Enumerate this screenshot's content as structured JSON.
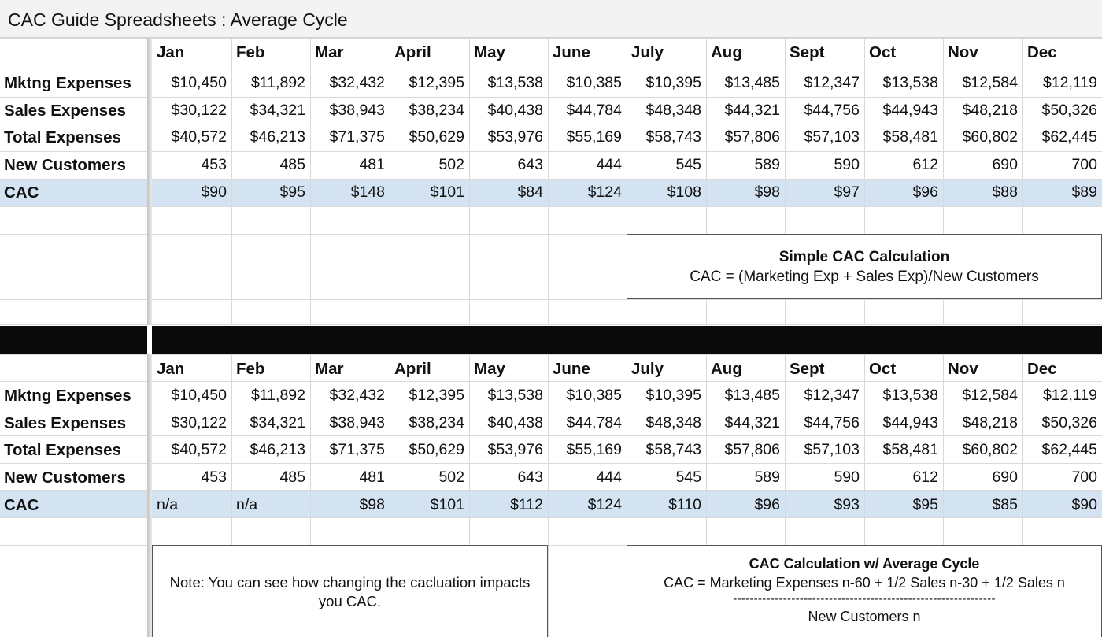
{
  "window": {
    "title": "CAC Guide Spreadsheets : Average Cycle"
  },
  "months": [
    "Jan",
    "Feb",
    "Mar",
    "April",
    "May",
    "June",
    "July",
    "Aug",
    "Sept",
    "Oct",
    "Nov",
    "Dec"
  ],
  "colors": {
    "cac_row": "#d3e3f1",
    "divider": "#0a0a0a",
    "gridline": "#d9d9d9"
  },
  "simple_table": {
    "rows": [
      {
        "label": "Mktng Expenses",
        "values": [
          "$10,450",
          "$11,892",
          "$32,432",
          "$12,395",
          "$13,538",
          "$10,385",
          "$10,395",
          "$13,485",
          "$12,347",
          "$13,538",
          "$12,584",
          "$12,119"
        ]
      },
      {
        "label": "Sales Expenses",
        "values": [
          "$30,122",
          "$34,321",
          "$38,943",
          "$38,234",
          "$40,438",
          "$44,784",
          "$48,348",
          "$44,321",
          "$44,756",
          "$44,943",
          "$48,218",
          "$50,326"
        ]
      },
      {
        "label": "Total Expenses",
        "values": [
          "$40,572",
          "$46,213",
          "$71,375",
          "$50,629",
          "$53,976",
          "$55,169",
          "$58,743",
          "$57,806",
          "$57,103",
          "$58,481",
          "$60,802",
          "$62,445"
        ]
      },
      {
        "label": "New Customers",
        "values": [
          "453",
          "485",
          "481",
          "502",
          "643",
          "444",
          "545",
          "589",
          "590",
          "612",
          "690",
          "700"
        ]
      },
      {
        "label": "CAC",
        "highlight": true,
        "values": [
          "$90",
          "$95",
          "$148",
          "$101",
          "$84",
          "$124",
          "$108",
          "$98",
          "$97",
          "$96",
          "$88",
          "$89"
        ]
      }
    ],
    "formula_box": {
      "heading": "Simple CAC Calculation",
      "formula": "CAC = (Marketing Exp + Sales Exp)/New Customers"
    }
  },
  "average_cycle_table": {
    "rows": [
      {
        "label": "Mktng Expenses",
        "values": [
          "$10,450",
          "$11,892",
          "$32,432",
          "$12,395",
          "$13,538",
          "$10,385",
          "$10,395",
          "$13,485",
          "$12,347",
          "$13,538",
          "$12,584",
          "$12,119"
        ]
      },
      {
        "label": "Sales Expenses",
        "values": [
          "$30,122",
          "$34,321",
          "$38,943",
          "$38,234",
          "$40,438",
          "$44,784",
          "$48,348",
          "$44,321",
          "$44,756",
          "$44,943",
          "$48,218",
          "$50,326"
        ]
      },
      {
        "label": "Total Expenses",
        "values": [
          "$40,572",
          "$46,213",
          "$71,375",
          "$50,629",
          "$53,976",
          "$55,169",
          "$58,743",
          "$57,806",
          "$57,103",
          "$58,481",
          "$60,802",
          "$62,445"
        ]
      },
      {
        "label": "New Customers",
        "values": [
          "453",
          "485",
          "481",
          "502",
          "643",
          "444",
          "545",
          "589",
          "590",
          "612",
          "690",
          "700"
        ]
      },
      {
        "label": "CAC",
        "highlight": true,
        "values": [
          "n/a",
          "n/a",
          "$98",
          "$101",
          "$112",
          "$124",
          "$110",
          "$96",
          "$93",
          "$95",
          "$85",
          "$90"
        ]
      }
    ],
    "note_box": {
      "line1": "Note: You can see how changing the cacluation impacts",
      "line2": "you CAC."
    },
    "formula_box": {
      "heading": "CAC Calculation w/ Average Cycle",
      "numerator": "CAC = Marketing Expenses n-60 + 1/2 Sales n-30 + 1/2 Sales n",
      "divider": "---------------------------------------------------------------",
      "denominator": "New Customers n"
    }
  }
}
